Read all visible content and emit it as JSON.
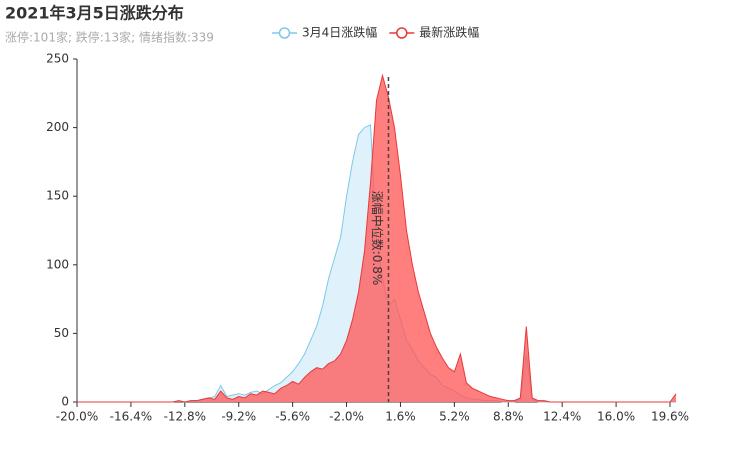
{
  "chart_data": {
    "type": "area",
    "title": "2021年3月5日涨跌分布",
    "subtitle": "涨停:101家; 跌停:13家; 情绪指数:339",
    "x": [
      -20.0,
      -19.6,
      -19.2,
      -18.8,
      -18.4,
      -18.0,
      -17.6,
      -17.2,
      -16.8,
      -16.4,
      -16.0,
      -15.6,
      -15.2,
      -14.8,
      -14.4,
      -14.0,
      -13.6,
      -13.2,
      -12.8,
      -12.4,
      -12.0,
      -11.6,
      -11.2,
      -10.8,
      -10.4,
      -10.0,
      -9.6,
      -9.2,
      -8.8,
      -8.4,
      -8.0,
      -7.6,
      -7.2,
      -6.8,
      -6.4,
      -6.0,
      -5.6,
      -5.2,
      -4.8,
      -4.4,
      -4.0,
      -3.6,
      -3.2,
      -2.8,
      -2.4,
      -2.0,
      -1.6,
      -1.2,
      -0.8,
      -0.4,
      0.0,
      0.4,
      0.8,
      1.2,
      1.6,
      2.0,
      2.4,
      2.8,
      3.2,
      3.6,
      4.0,
      4.4,
      4.8,
      5.2,
      5.6,
      6.0,
      6.4,
      6.8,
      7.2,
      7.6,
      8.0,
      8.4,
      8.8,
      9.2,
      9.6,
      10.0,
      10.4,
      10.8,
      11.2,
      11.6,
      12.0,
      12.4,
      12.8,
      13.2,
      13.6,
      14.0,
      14.4,
      14.8,
      15.2,
      15.6,
      16.0,
      16.4,
      16.8,
      17.2,
      17.6,
      18.0,
      18.4,
      18.8,
      19.2,
      19.6,
      20.0
    ],
    "series": [
      {
        "name": "3月4日涨跌幅",
        "color": "#7ec8e8",
        "fill": "#dff2fb",
        "values": [
          0,
          0,
          0,
          0,
          0,
          0,
          0,
          0,
          0,
          0,
          0,
          0,
          0,
          0,
          0,
          0,
          0,
          1,
          0,
          1,
          1,
          2,
          3,
          4,
          12,
          4,
          5,
          6,
          5,
          7,
          8,
          6,
          9,
          12,
          14,
          18,
          22,
          28,
          35,
          45,
          55,
          70,
          90,
          105,
          120,
          150,
          175,
          195,
          200,
          202,
          120,
          90,
          70,
          75,
          60,
          45,
          38,
          30,
          25,
          20,
          18,
          12,
          10,
          8,
          5,
          3,
          2,
          2,
          1,
          1,
          1,
          0,
          0,
          0,
          2,
          35,
          2,
          0,
          0,
          0,
          0,
          0,
          0,
          0,
          0,
          0,
          0,
          0,
          0,
          0,
          0,
          0,
          0,
          0,
          0,
          0,
          0,
          0,
          0,
          0,
          0
        ]
      },
      {
        "name": "最新涨跌幅",
        "color": "#e8393a",
        "fill": "rgba(255,90,90,0.78)",
        "values": [
          0,
          0,
          0,
          0,
          0,
          0,
          0,
          0,
          0,
          0,
          0,
          0,
          0,
          0,
          0,
          0,
          0,
          1,
          0,
          1,
          1,
          2,
          3,
          2,
          8,
          3,
          2,
          4,
          3,
          6,
          5,
          8,
          7,
          6,
          10,
          12,
          15,
          13,
          18,
          22,
          25,
          24,
          28,
          30,
          35,
          45,
          60,
          80,
          110,
          160,
          220,
          238,
          222,
          200,
          165,
          125,
          100,
          80,
          65,
          50,
          40,
          32,
          25,
          22,
          35,
          14,
          10,
          8,
          6,
          4,
          3,
          2,
          1,
          1,
          3,
          55,
          3,
          1,
          1,
          0,
          0,
          0,
          0,
          0,
          0,
          0,
          0,
          0,
          0,
          0,
          0,
          0,
          0,
          0,
          0,
          0,
          0,
          0,
          0,
          0,
          6
        ]
      }
    ],
    "xlim": [
      -20,
      20
    ],
    "xticks": [
      {
        "value": -20,
        "label": "-20.0%"
      },
      {
        "value": -16.4,
        "label": "-16.4%"
      },
      {
        "value": -12.8,
        "label": "-12.8%"
      },
      {
        "value": -9.2,
        "label": "-9.2%"
      },
      {
        "value": -5.6,
        "label": "-5.6%"
      },
      {
        "value": -2.0,
        "label": "-2.0%"
      },
      {
        "value": 1.6,
        "label": "1.6%"
      },
      {
        "value": 5.2,
        "label": "5.2%"
      },
      {
        "value": 8.8,
        "label": "8.8%"
      },
      {
        "value": 12.4,
        "label": "12.4%"
      },
      {
        "value": 16.0,
        "label": "16.0%"
      },
      {
        "value": 19.6,
        "label": "19.6%"
      }
    ],
    "ylim": [
      0,
      250
    ],
    "yticks": [
      0,
      50,
      100,
      150,
      200,
      250
    ],
    "median": 0.8,
    "median_label": "涨幅中位数:0.8%",
    "legend": "top"
  }
}
